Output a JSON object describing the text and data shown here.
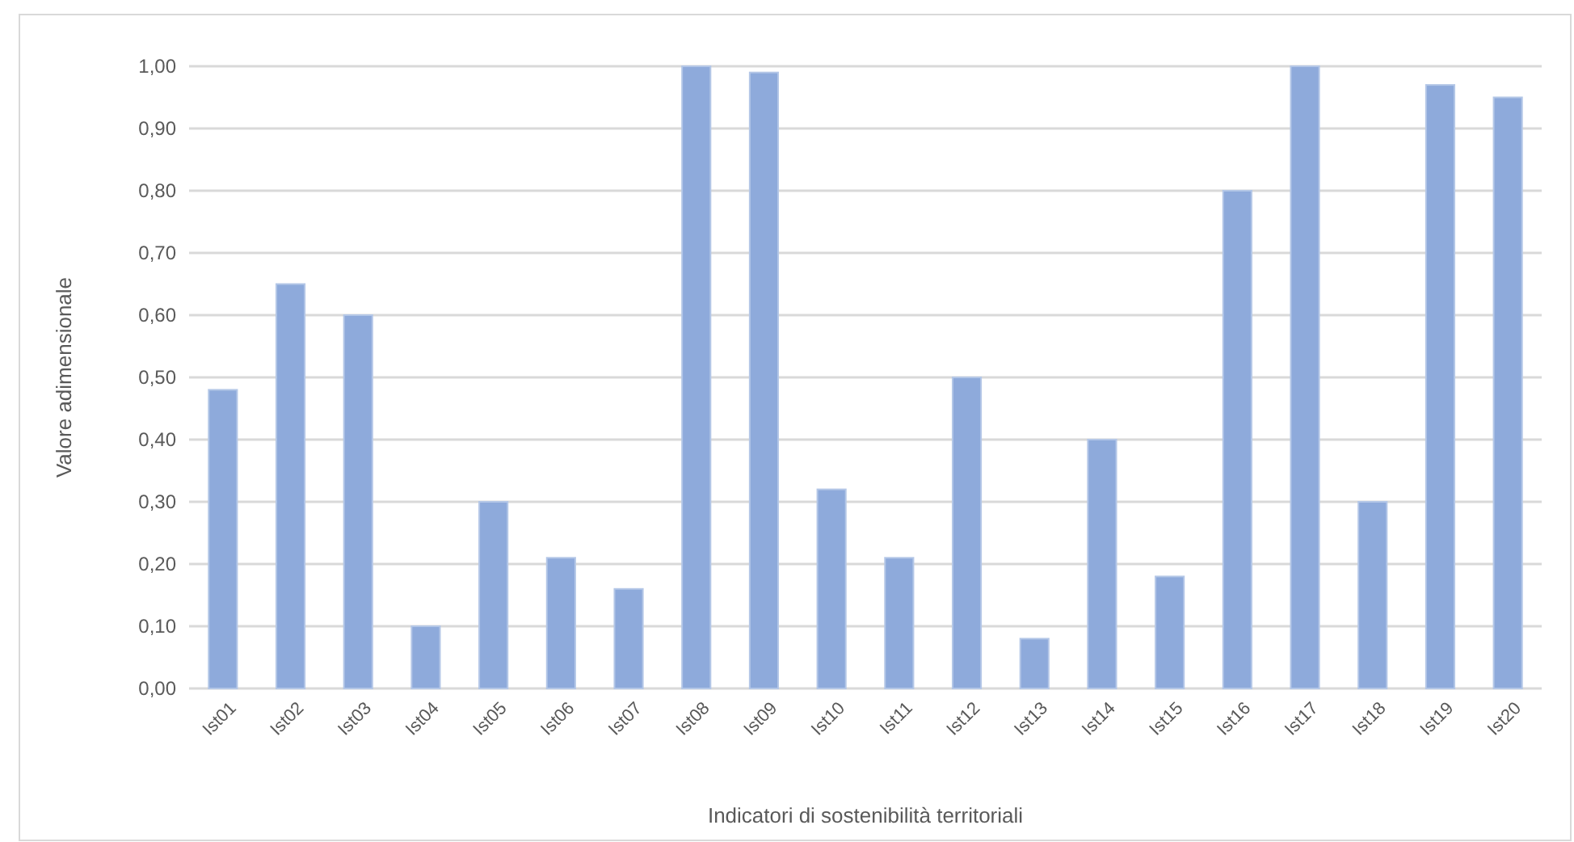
{
  "chart_data": {
    "type": "bar",
    "xlabel": "Indicatori di sostenibilità territoriali",
    "ylabel": "Valore adimensionale",
    "categories": [
      "Ist01",
      "Ist02",
      "Ist03",
      "Ist04",
      "Ist05",
      "Ist06",
      "Ist07",
      "Ist08",
      "Ist09",
      "Ist10",
      "Ist11",
      "Ist12",
      "Ist13",
      "Ist14",
      "Ist15",
      "Ist16",
      "Ist17",
      "Ist18",
      "Ist19",
      "Ist20"
    ],
    "values": [
      0.48,
      0.65,
      0.6,
      0.1,
      0.3,
      0.21,
      0.16,
      1.0,
      0.99,
      0.32,
      0.21,
      0.5,
      0.08,
      0.4,
      0.18,
      0.8,
      1.0,
      0.3,
      0.97,
      0.95
    ],
    "color": "#8eaadb",
    "ylim": [
      0,
      1
    ],
    "yticks": [
      {
        "value": 0,
        "label": "0,00"
      },
      {
        "value": 0.1,
        "label": "0,10"
      },
      {
        "value": 0.2,
        "label": "0,20"
      },
      {
        "value": 0.3,
        "label": "0,30"
      },
      {
        "value": 0.4,
        "label": "0,40"
      },
      {
        "value": 0.5,
        "label": "0,50"
      },
      {
        "value": 0.6,
        "label": "0,60"
      },
      {
        "value": 0.7,
        "label": "0,70"
      },
      {
        "value": 0.8,
        "label": "0,80"
      },
      {
        "value": 0.9,
        "label": "0,90"
      },
      {
        "value": 1,
        "label": "1,00"
      }
    ],
    "grid": "y"
  }
}
